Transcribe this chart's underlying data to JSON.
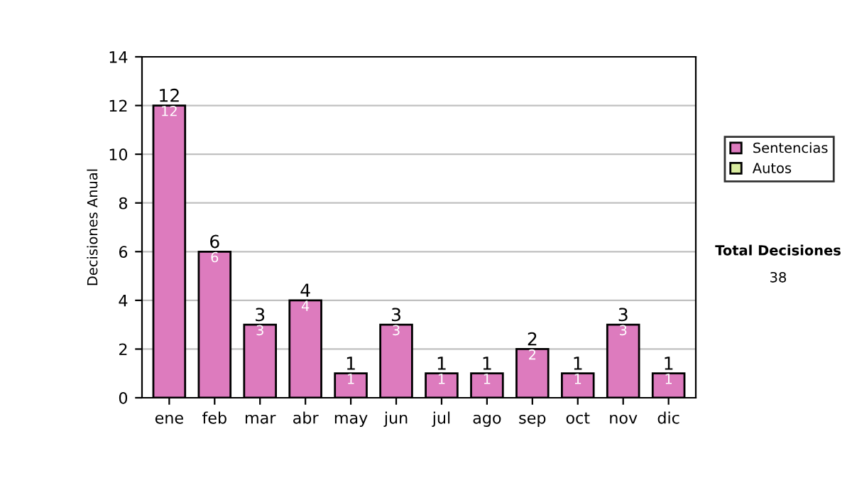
{
  "chart_data": {
    "type": "bar",
    "stacked": true,
    "ylabel": "Decisiones Anual",
    "categories": [
      "ene",
      "feb",
      "mar",
      "abr",
      "may",
      "jun",
      "jul",
      "ago",
      "sep",
      "oct",
      "nov",
      "dic"
    ],
    "series": [
      {
        "name": "Sentencias",
        "color": "#dd7bbe",
        "values": [
          12,
          6,
          3,
          4,
          1,
          3,
          1,
          1,
          2,
          1,
          3,
          1
        ],
        "value_labels": [
          "12",
          "6",
          "3",
          "4",
          "1",
          "3",
          "1",
          "1",
          "2",
          "1",
          "3",
          "1"
        ]
      },
      {
        "name": "Autos",
        "color": "#d9eca0",
        "values": [
          null,
          null,
          null,
          null,
          null,
          null,
          null,
          null,
          null,
          null,
          null,
          null
        ]
      }
    ],
    "totals": [
      "12",
      "6",
      "3",
      "4",
      "1",
      "3",
      "1",
      "1",
      "2",
      "1",
      "3",
      "1"
    ],
    "ylim": [
      0,
      14
    ],
    "yticks": [
      0,
      2,
      4,
      6,
      8,
      10,
      12,
      14
    ],
    "grid": "y",
    "legend": "right",
    "annotations": [
      "Total Decisiones",
      "38"
    ]
  }
}
